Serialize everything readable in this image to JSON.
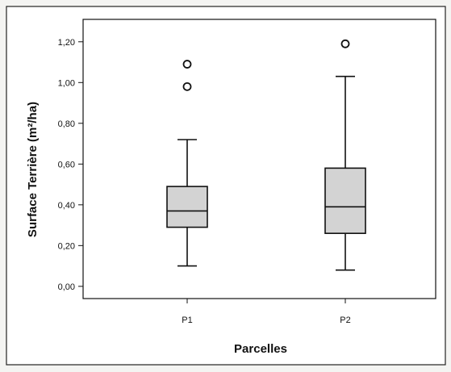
{
  "chart_data": {
    "type": "boxplot",
    "xlabel": "Parcelles",
    "ylabel": "Surface Terrière (m²/ha)",
    "ylim": [
      -0.06,
      1.31
    ],
    "yticks": [
      0.0,
      0.2,
      0.4,
      0.6,
      0.8,
      1.0,
      1.2
    ],
    "ytick_labels": [
      "0,00",
      "0,20",
      "0,40",
      "0,60",
      "0,80",
      "1,00",
      "1,20"
    ],
    "categories": [
      "P1",
      "P2"
    ],
    "box_color": "#d3d3d3",
    "boxes": [
      {
        "name": "P1",
        "whisker_low": 0.1,
        "q1": 0.29,
        "median": 0.37,
        "q3": 0.49,
        "whisker_high": 0.72,
        "outliers": [
          0.98,
          1.09
        ]
      },
      {
        "name": "P2",
        "whisker_low": 0.08,
        "q1": 0.26,
        "median": 0.39,
        "q3": 0.58,
        "whisker_high": 1.03,
        "outliers": [
          1.19
        ]
      }
    ]
  }
}
